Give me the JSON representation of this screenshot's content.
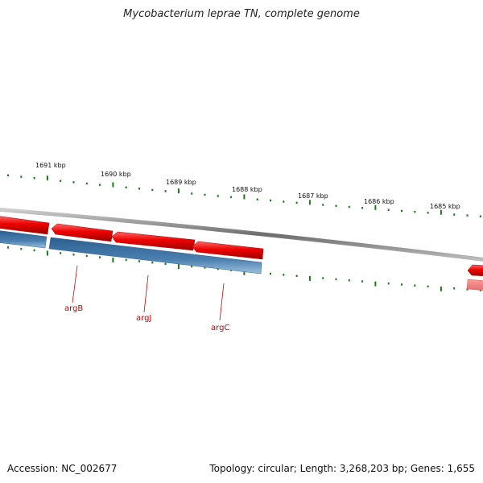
{
  "title": "Mycobacterium leprae TN, complete genome",
  "footer": {
    "accession": "Accession: NC_002677",
    "summary": "Topology: circular; Length: 3,268,203 bp; Genes: 1,655"
  },
  "ticks": [
    {
      "label": "1691 kbp"
    },
    {
      "label": "1690 kbp"
    },
    {
      "label": "1689 kbp"
    },
    {
      "label": "1688 kbp"
    },
    {
      "label": "1687 kbp"
    },
    {
      "label": "1686 kbp"
    },
    {
      "label": "1685 kbp"
    }
  ],
  "genes": [
    {
      "name": "argB"
    },
    {
      "name": "argJ"
    },
    {
      "name": "argC"
    }
  ],
  "colors": {
    "forward": "#e00000",
    "reverse": "#4477aa",
    "backbone": "#888888",
    "ticks": "#1a7a1a",
    "label": "#cc0000"
  }
}
